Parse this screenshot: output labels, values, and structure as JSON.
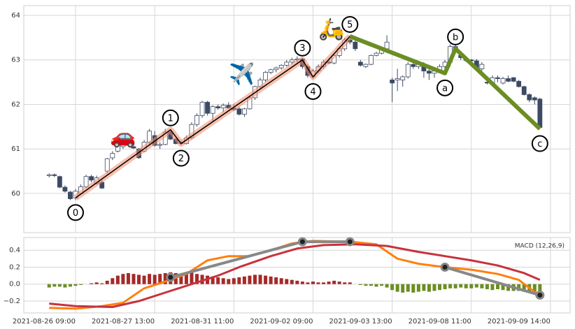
{
  "chart_data": [
    {
      "type": "candlestick",
      "ohlc": [
        [
          60.4,
          60.45,
          60.36,
          60.42
        ],
        [
          60.42,
          60.45,
          60.37,
          60.4
        ],
        [
          60.38,
          60.4,
          60.12,
          60.14
        ],
        [
          60.14,
          60.18,
          60.02,
          60.05
        ],
        [
          60.03,
          60.06,
          59.85,
          59.88
        ],
        [
          59.9,
          60.1,
          59.85,
          60.05
        ],
        [
          60.0,
          60.2,
          59.98,
          60.15
        ],
        [
          60.15,
          60.42,
          60.12,
          60.38
        ],
        [
          60.38,
          60.42,
          60.25,
          60.3
        ],
        [
          60.22,
          60.4,
          60.2,
          60.35
        ],
        [
          60.25,
          60.3,
          60.1,
          60.12
        ],
        [
          60.5,
          60.8,
          60.45,
          60.78
        ],
        [
          60.8,
          60.95,
          60.75,
          60.9
        ],
        [
          60.95,
          61.12,
          60.92,
          61.1
        ],
        [
          61.05,
          61.15,
          61.0,
          61.12
        ],
        [
          61.1,
          61.15,
          61.05,
          61.08
        ],
        [
          61.05,
          61.1,
          61.0,
          61.02
        ],
        [
          61.0,
          61.02,
          60.78,
          60.8
        ],
        [
          60.95,
          61.2,
          60.92,
          61.15
        ],
        [
          61.15,
          61.45,
          61.1,
          61.4
        ],
        [
          61.3,
          61.4,
          61.05,
          61.08
        ],
        [
          61.08,
          61.15,
          61.0,
          61.1
        ],
        [
          61.1,
          61.45,
          61.08,
          61.38
        ],
        [
          61.38,
          61.43,
          61.2,
          61.22
        ],
        [
          61.22,
          61.25,
          61.1,
          61.12
        ],
        [
          61.12,
          61.2,
          61.08,
          61.15
        ],
        [
          61.12,
          61.3,
          61.1,
          61.25
        ],
        [
          61.25,
          61.6,
          61.22,
          61.55
        ],
        [
          61.55,
          61.8,
          61.5,
          61.75
        ],
        [
          61.75,
          62.08,
          61.7,
          62.05
        ],
        [
          62.05,
          62.08,
          61.75,
          61.8
        ],
        [
          61.8,
          61.98,
          61.62,
          61.95
        ],
        [
          61.95,
          62.0,
          61.88,
          61.92
        ],
        [
          61.92,
          62.02,
          61.82,
          61.98
        ],
        [
          61.98,
          62.05,
          61.9,
          61.92
        ],
        [
          61.92,
          62.0,
          61.85,
          61.88
        ],
        [
          61.9,
          61.95,
          61.75,
          61.78
        ],
        [
          61.78,
          61.92,
          61.72,
          61.9
        ],
        [
          61.9,
          62.2,
          61.88,
          62.15
        ],
        [
          62.15,
          62.42,
          62.1,
          62.4
        ],
        [
          62.4,
          62.6,
          62.35,
          62.55
        ],
        [
          62.55,
          62.75,
          62.5,
          62.72
        ],
        [
          62.72,
          62.8,
          62.68,
          62.78
        ],
        [
          62.78,
          62.85,
          62.72,
          62.82
        ],
        [
          62.82,
          62.9,
          62.78,
          62.88
        ],
        [
          62.88,
          63.0,
          62.85,
          62.95
        ],
        [
          62.95,
          63.05,
          62.9,
          63.0
        ],
        [
          63.0,
          63.08,
          62.95,
          63.02
        ],
        [
          63.02,
          63.05,
          62.8,
          62.85
        ],
        [
          62.85,
          62.9,
          62.6,
          62.65
        ],
        [
          62.62,
          62.8,
          62.58,
          62.75
        ],
        [
          62.75,
          62.9,
          62.7,
          62.85
        ],
        [
          62.85,
          63.0,
          62.8,
          62.95
        ],
        [
          62.95,
          63.0,
          62.9,
          62.93
        ],
        [
          62.93,
          63.15,
          62.9,
          63.1
        ],
        [
          63.1,
          63.3,
          63.05,
          63.25
        ],
        [
          63.25,
          63.5,
          63.2,
          63.45
        ],
        [
          63.45,
          63.55,
          63.35,
          63.4
        ],
        [
          63.4,
          63.45,
          63.2,
          63.25
        ],
        [
          62.95,
          63.0,
          62.85,
          62.88
        ],
        [
          62.85,
          62.92,
          62.82,
          62.9
        ],
        [
          62.9,
          63.12,
          62.88,
          63.1
        ],
        [
          63.1,
          63.18,
          63.08,
          63.15
        ],
        [
          63.15,
          63.3,
          63.12,
          63.25
        ],
        [
          63.25,
          63.55,
          63.2,
          63.4
        ],
        [
          62.55,
          62.6,
          62.05,
          62.48
        ],
        [
          62.55,
          62.8,
          62.3,
          62.58
        ],
        [
          62.55,
          62.65,
          62.4,
          62.62
        ],
        [
          62.62,
          62.95,
          62.58,
          62.9
        ],
        [
          62.9,
          62.95,
          62.8,
          62.85
        ],
        [
          62.85,
          62.95,
          62.8,
          62.9
        ],
        [
          62.9,
          62.95,
          62.6,
          62.75
        ],
        [
          62.75,
          62.8,
          62.55,
          62.7
        ],
        [
          62.7,
          62.8,
          62.6,
          62.75
        ],
        [
          62.75,
          62.9,
          62.7,
          62.85
        ],
        [
          62.85,
          63.0,
          62.75,
          62.95
        ],
        [
          62.95,
          63.35,
          62.85,
          63.3
        ],
        [
          63.3,
          63.35,
          63.15,
          63.2
        ],
        [
          63.1,
          63.15,
          63.0,
          63.05
        ],
        [
          63.0,
          63.05,
          62.95,
          63.0
        ],
        [
          63.0,
          63.02,
          62.95,
          62.98
        ],
        [
          62.98,
          63.02,
          62.75,
          62.8
        ],
        [
          62.8,
          62.95,
          62.75,
          62.9
        ],
        [
          62.5,
          62.55,
          62.45,
          62.48
        ],
        [
          62.48,
          62.65,
          62.4,
          62.6
        ],
        [
          62.6,
          62.65,
          62.5,
          62.58
        ],
        [
          62.48,
          62.62,
          62.45,
          62.58
        ],
        [
          62.58,
          62.65,
          62.5,
          62.52
        ],
        [
          62.6,
          62.62,
          62.5,
          62.52
        ],
        [
          62.52,
          62.55,
          62.38,
          62.4
        ],
        [
          62.4,
          62.42,
          62.2,
          62.22
        ],
        [
          62.22,
          62.25,
          62.05,
          62.1
        ],
        [
          62.15,
          62.18,
          62.0,
          62.1
        ],
        [
          62.12,
          62.15,
          61.45,
          61.48
        ]
      ],
      "up_color": "#ffffff",
      "down_color": "#3d4a63",
      "waves": {
        "labels": [
          "0",
          "1",
          "2",
          "3",
          "4",
          "5",
          "a",
          "b",
          "c"
        ],
        "x": [
          5,
          23,
          25,
          48,
          50,
          57,
          75,
          77,
          93
        ],
        "values": [
          59.9,
          61.43,
          61.12,
          63.0,
          62.62,
          63.53,
          62.7,
          63.25,
          61.45
        ],
        "impulse_color": "#000000",
        "band_color": "#f08a6a",
        "correction_color": "#6b8e23"
      },
      "icons": [
        "🚗",
        "✈️",
        "🛵"
      ],
      "xlim": [
        -4.81,
        98.72
      ],
      "ylim": [
        59.12,
        64.22
      ],
      "yticks": [
        60,
        61,
        62,
        63,
        64
      ],
      "grid": true
    },
    {
      "type": "macd",
      "label": "MACD (12,26,9)",
      "histogram": [
        -0.04,
        -0.03,
        -0.03,
        -0.04,
        -0.03,
        -0.02,
        -0.01,
        0.0,
        0.01,
        0.02,
        0.01,
        0.04,
        0.07,
        0.1,
        0.12,
        0.13,
        0.12,
        0.11,
        0.1,
        0.12,
        0.11,
        0.12,
        0.13,
        0.14,
        0.13,
        0.12,
        0.13,
        0.14,
        0.12,
        0.11,
        0.1,
        0.09,
        0.08,
        0.07,
        0.06,
        0.07,
        0.08,
        0.09,
        0.1,
        0.11,
        0.11,
        0.1,
        0.09,
        0.08,
        0.07,
        0.06,
        0.05,
        0.04,
        0.03,
        0.02,
        0.03,
        0.02,
        0.02,
        0.03,
        0.04,
        0.03,
        0.02,
        0.02,
        0.0,
        -0.01,
        -0.02,
        -0.02,
        -0.03,
        -0.02,
        -0.04,
        -0.07,
        -0.09,
        -0.1,
        -0.09,
        -0.1,
        -0.09,
        -0.08,
        -0.09,
        -0.08,
        -0.07,
        -0.06,
        -0.05,
        -0.05,
        -0.04,
        -0.05,
        -0.05,
        -0.04,
        -0.05,
        -0.06,
        -0.07,
        -0.06,
        -0.07,
        -0.08,
        -0.08,
        -0.08,
        -0.09,
        -0.1,
        -0.11,
        -0.12
      ],
      "pos_color": "#a52a2a",
      "neg_color": "#6b8e23",
      "series": [
        {
          "color": "#ff7f0e",
          "x": [
            0,
            5,
            10,
            14,
            18,
            22,
            26,
            30,
            34,
            38,
            42,
            46,
            50,
            57,
            62,
            66,
            70,
            75,
            80,
            85,
            89,
            93
          ],
          "values": [
            -0.28,
            -0.29,
            -0.26,
            -0.22,
            -0.05,
            0.03,
            0.12,
            0.28,
            0.33,
            0.33,
            0.4,
            0.48,
            0.51,
            0.5,
            0.47,
            0.3,
            0.24,
            0.2,
            0.17,
            0.12,
            0.05,
            -0.14
          ]
        },
        {
          "color": "#c8323c",
          "x": [
            0,
            5,
            12,
            17,
            22,
            27,
            32,
            36,
            42,
            47,
            52,
            58,
            64,
            70,
            75,
            80,
            85,
            90,
            93
          ],
          "values": [
            -0.23,
            -0.26,
            -0.27,
            -0.2,
            -0.1,
            0.0,
            0.1,
            0.2,
            0.33,
            0.42,
            0.46,
            0.47,
            0.45,
            0.38,
            0.33,
            0.28,
            0.22,
            0.13,
            0.05
          ]
        }
      ],
      "wave_lines": [
        {
          "x": [
            23,
            48,
            57
          ],
          "values": [
            0.08,
            0.5,
            0.5
          ]
        },
        {
          "x": [
            75,
            93
          ],
          "values": [
            0.2,
            -0.13
          ]
        }
      ],
      "wave_color": "#888888",
      "xlim": [
        -4.81,
        98.72
      ],
      "ylim": [
        -0.34,
        0.55
      ],
      "yticks": [
        0.4,
        0.2,
        {
          "value": 0,
          "label": "0.0"
        },
        {
          "value": -0.2,
          "label": "−0.2"
        }
      ],
      "xticks": [
        {
          "value": 5,
          "label": "2021-08-26 09:00"
        },
        {
          "value": 20,
          "label": "2021-08-27 13:00"
        },
        {
          "value": 35,
          "label": "2021-08-31 11:00"
        },
        {
          "value": 50,
          "label": "2021-09-02 09:00"
        },
        {
          "value": 65,
          "label": "2021-09-03 13:00"
        },
        {
          "value": 80,
          "label": "2021-09-08 11:00"
        },
        {
          "value": 95,
          "label": "2021-09-09 14:00"
        }
      ],
      "grid": true
    }
  ]
}
